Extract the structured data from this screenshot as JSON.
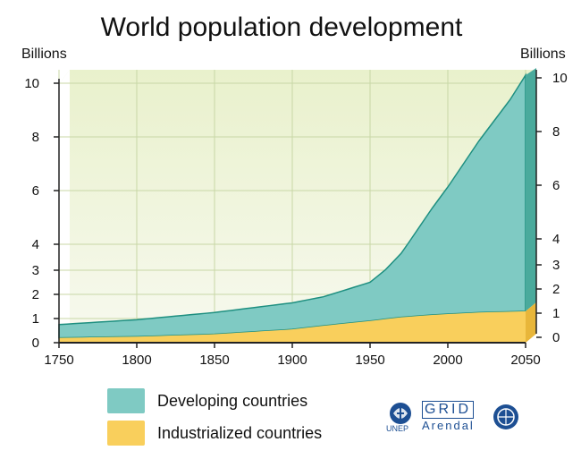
{
  "title": "World population development",
  "axis": {
    "left_unit": "Billions",
    "right_unit": "Billions"
  },
  "chart_data": {
    "type": "area",
    "title": "World population development",
    "xlabel": "",
    "ylabel": "Billions",
    "x_ticks": [
      1750,
      1800,
      1850,
      1900,
      1950,
      2000,
      2050
    ],
    "left_y_ticks": [
      0,
      1,
      2,
      3,
      4,
      6,
      8,
      10
    ],
    "right_y_ticks": [
      0,
      1,
      2,
      3,
      4,
      6,
      8,
      10
    ],
    "xlim": [
      1750,
      2050
    ],
    "grid": true,
    "legend_position": "bottom-left",
    "stacked": true,
    "series": [
      {
        "name": "Industrialized countries",
        "color": "#f9cf5c",
        "x": [
          1750,
          1800,
          1850,
          1900,
          1920,
          1950,
          1970,
          1990,
          2020,
          2050
        ],
        "values": [
          0.2,
          0.25,
          0.35,
          0.55,
          0.7,
          0.9,
          1.05,
          1.15,
          1.25,
          1.3
        ]
      },
      {
        "name": "Developing countries",
        "color": "#7fcac3",
        "x": [
          1750,
          1800,
          1850,
          1900,
          1920,
          1950,
          1960,
          1970,
          1990,
          2000,
          2020,
          2040,
          2050
        ],
        "values": [
          0.55,
          0.7,
          0.9,
          1.1,
          1.2,
          1.6,
          2.05,
          2.6,
          4.2,
          4.95,
          6.6,
          8.1,
          9.0
        ]
      }
    ]
  },
  "legend": {
    "items": [
      {
        "label": "Developing countries",
        "color": "#7fcac3"
      },
      {
        "label": "Industrialized countries",
        "color": "#f9cf5c"
      }
    ]
  },
  "logos": {
    "unep": "UNEP",
    "grid": "GRID",
    "arendal": "Arendal"
  }
}
